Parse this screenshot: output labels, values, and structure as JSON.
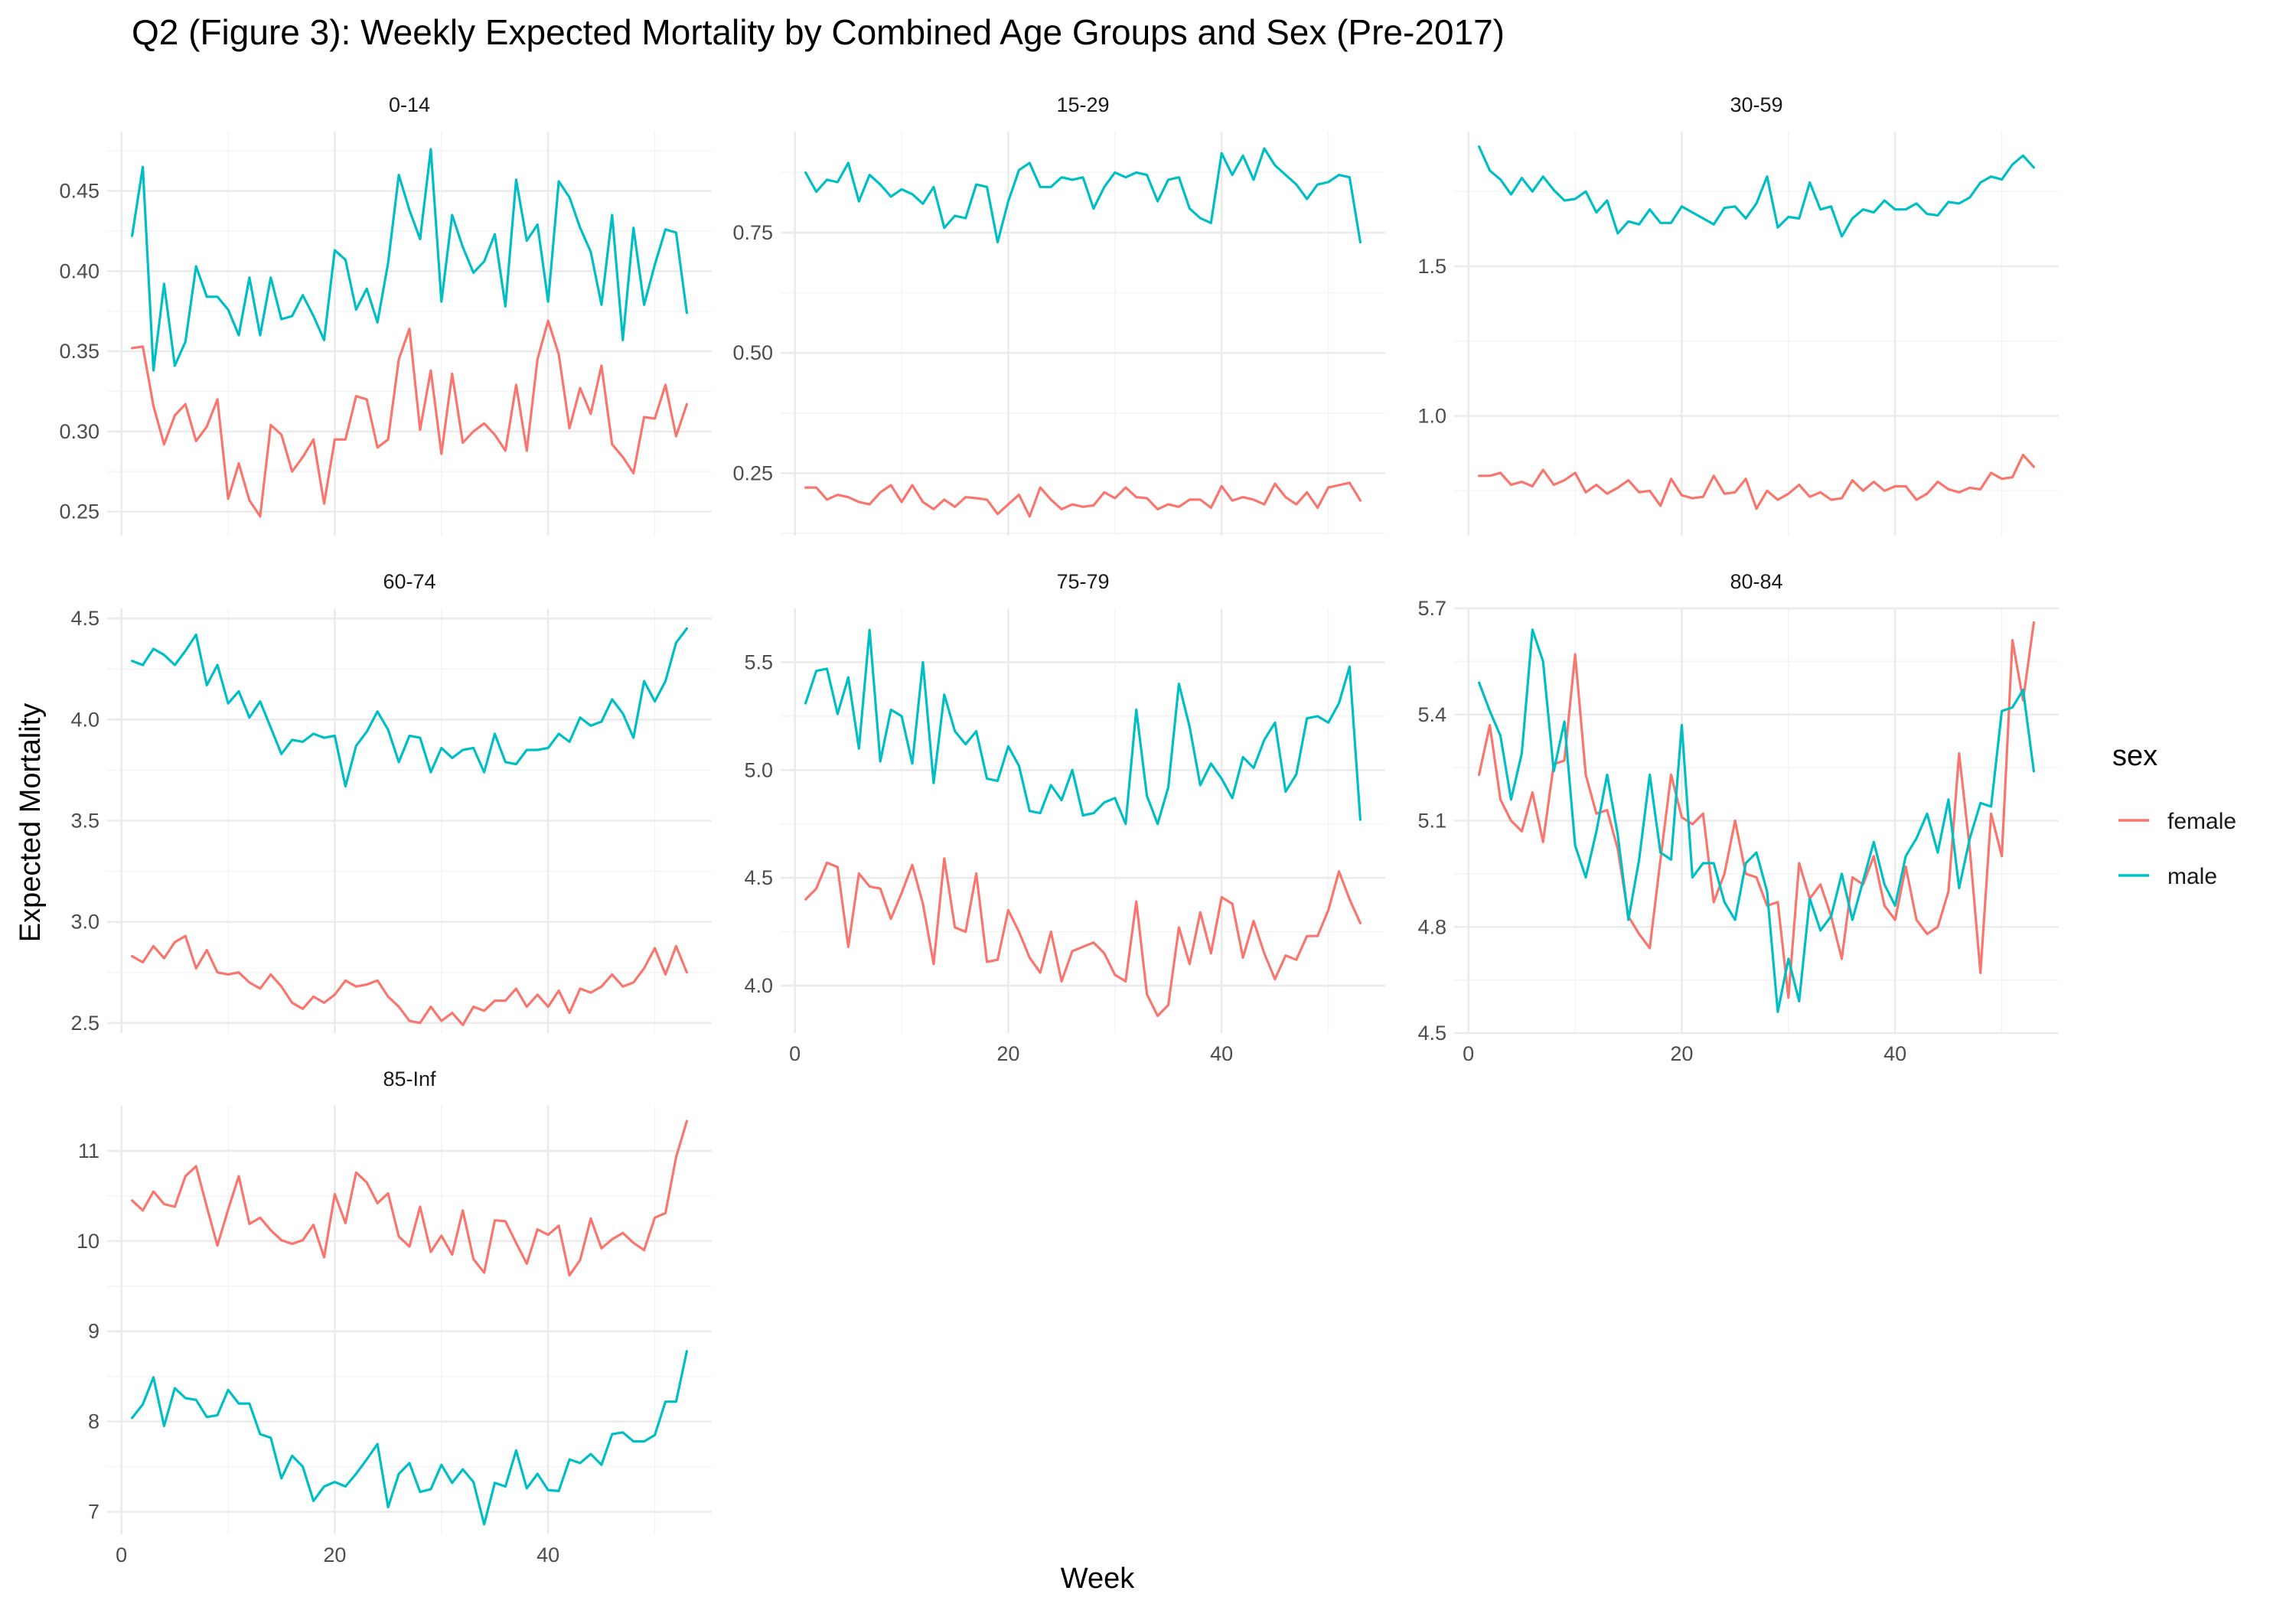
{
  "chart_data": {
    "type": "line",
    "title": "Q2 (Figure 3): Weekly Expected Mortality by Combined Age Groups and Sex (Pre-2017)",
    "xlabel": "Week",
    "ylabel": "Expected Mortality",
    "x_ticks": [
      0,
      20,
      40
    ],
    "xlim": [
      1,
      53
    ],
    "legend": {
      "title": "sex",
      "position": "right",
      "entries": [
        {
          "name": "female",
          "color": "#F8766D"
        },
        {
          "name": "male",
          "color": "#00BFC4"
        }
      ]
    },
    "grid": true,
    "panels": [
      {
        "label": "0-14",
        "ylim": [
          0.235,
          0.487
        ],
        "y_ticks": [
          0.25,
          0.3,
          0.35,
          0.4,
          0.45
        ],
        "y_tick_labels": [
          "0.25",
          "0.30",
          "0.35",
          "0.40",
          "0.45"
        ],
        "series": [
          {
            "name": "female",
            "values": [
              0.352,
              0.353,
              0.316,
              0.292,
              0.31,
              0.317,
              0.294,
              0.303,
              0.32,
              0.258,
              0.28,
              0.257,
              0.247,
              0.304,
              0.298,
              0.275,
              0.284,
              0.295,
              0.255,
              0.295,
              0.295,
              0.322,
              0.32,
              0.29,
              0.295,
              0.345,
              0.364,
              0.301,
              0.338,
              0.286,
              0.336,
              0.293,
              0.3,
              0.305,
              0.298,
              0.288,
              0.329,
              0.288,
              0.345,
              0.369,
              0.348,
              0.302,
              0.327,
              0.311,
              0.341,
              0.292,
              0.284,
              0.274,
              0.309,
              0.308,
              0.329,
              0.297,
              0.317
            ]
          },
          {
            "name": "male",
            "values": [
              0.422,
              0.465,
              0.338,
              0.392,
              0.341,
              0.356,
              0.403,
              0.384,
              0.384,
              0.376,
              0.36,
              0.396,
              0.36,
              0.396,
              0.37,
              0.372,
              0.385,
              0.372,
              0.357,
              0.413,
              0.407,
              0.376,
              0.389,
              0.368,
              0.405,
              0.46,
              0.438,
              0.42,
              0.476,
              0.381,
              0.435,
              0.415,
              0.399,
              0.406,
              0.423,
              0.378,
              0.457,
              0.419,
              0.429,
              0.381,
              0.456,
              0.446,
              0.427,
              0.412,
              0.379,
              0.435,
              0.357,
              0.427,
              0.379,
              0.404,
              0.426,
              0.424,
              0.374
            ]
          }
        ]
      },
      {
        "label": "15-29",
        "ylim": [
          0.12,
          0.96
        ],
        "y_ticks": [
          0.25,
          0.5,
          0.75
        ],
        "y_tick_labels": [
          "0.25",
          "0.50",
          "0.75"
        ],
        "series": [
          {
            "name": "female",
            "values": [
              0.22,
              0.22,
              0.195,
              0.205,
              0.2,
              0.19,
              0.185,
              0.21,
              0.225,
              0.19,
              0.225,
              0.19,
              0.175,
              0.195,
              0.18,
              0.2,
              0.198,
              0.195,
              0.165,
              0.185,
              0.205,
              0.16,
              0.22,
              0.195,
              0.175,
              0.185,
              0.18,
              0.183,
              0.21,
              0.198,
              0.22,
              0.2,
              0.198,
              0.175,
              0.185,
              0.18,
              0.195,
              0.195,
              0.178,
              0.223,
              0.193,
              0.2,
              0.195,
              0.185,
              0.228,
              0.2,
              0.185,
              0.21,
              0.178,
              0.22,
              0.225,
              0.23,
              0.193
            ]
          },
          {
            "name": "male",
            "values": [
              0.875,
              0.835,
              0.86,
              0.855,
              0.895,
              0.815,
              0.87,
              0.85,
              0.825,
              0.84,
              0.83,
              0.81,
              0.845,
              0.76,
              0.785,
              0.78,
              0.85,
              0.845,
              0.73,
              0.815,
              0.88,
              0.895,
              0.845,
              0.845,
              0.865,
              0.86,
              0.865,
              0.8,
              0.845,
              0.875,
              0.865,
              0.875,
              0.87,
              0.815,
              0.86,
              0.865,
              0.8,
              0.78,
              0.77,
              0.915,
              0.87,
              0.91,
              0.86,
              0.925,
              0.89,
              0.87,
              0.85,
              0.82,
              0.85,
              0.855,
              0.87,
              0.865,
              0.73
            ]
          }
        ]
      },
      {
        "label": "30-59",
        "ylim": [
          0.6,
          1.95
        ],
        "y_ticks": [
          1.0,
          1.5
        ],
        "y_tick_labels": [
          "1.0",
          "1.5"
        ],
        "series": [
          {
            "name": "female",
            "values": [
              0.8,
              0.8,
              0.81,
              0.77,
              0.78,
              0.765,
              0.82,
              0.77,
              0.785,
              0.81,
              0.745,
              0.77,
              0.74,
              0.76,
              0.785,
              0.745,
              0.75,
              0.7,
              0.79,
              0.735,
              0.725,
              0.73,
              0.8,
              0.74,
              0.745,
              0.79,
              0.69,
              0.75,
              0.72,
              0.74,
              0.77,
              0.73,
              0.745,
              0.72,
              0.725,
              0.785,
              0.75,
              0.78,
              0.75,
              0.765,
              0.765,
              0.72,
              0.74,
              0.78,
              0.755,
              0.745,
              0.76,
              0.755,
              0.81,
              0.79,
              0.795,
              0.87,
              0.83
            ]
          },
          {
            "name": "male",
            "values": [
              1.9,
              1.82,
              1.79,
              1.74,
              1.795,
              1.75,
              1.8,
              1.755,
              1.72,
              1.725,
              1.75,
              1.68,
              1.72,
              1.61,
              1.65,
              1.64,
              1.69,
              1.645,
              1.645,
              1.7,
              1.68,
              1.66,
              1.64,
              1.695,
              1.7,
              1.66,
              1.71,
              1.8,
              1.63,
              1.665,
              1.66,
              1.78,
              1.69,
              1.7,
              1.6,
              1.66,
              1.69,
              1.68,
              1.72,
              1.69,
              1.69,
              1.71,
              1.675,
              1.67,
              1.715,
              1.71,
              1.73,
              1.78,
              1.8,
              1.79,
              1.84,
              1.87,
              1.83
            ]
          }
        ]
      },
      {
        "label": "60-74",
        "ylim": [
          2.45,
          4.55
        ],
        "y_ticks": [
          2.5,
          3.0,
          3.5,
          4.0,
          4.5
        ],
        "y_tick_labels": [
          "2.5",
          "3.0",
          "3.5",
          "4.0",
          "4.5"
        ],
        "series": [
          {
            "name": "female",
            "values": [
              2.83,
              2.8,
              2.88,
              2.82,
              2.9,
              2.93,
              2.77,
              2.86,
              2.75,
              2.74,
              2.75,
              2.7,
              2.67,
              2.74,
              2.68,
              2.6,
              2.57,
              2.63,
              2.6,
              2.64,
              2.71,
              2.68,
              2.69,
              2.71,
              2.63,
              2.58,
              2.51,
              2.5,
              2.58,
              2.51,
              2.55,
              2.49,
              2.58,
              2.56,
              2.61,
              2.61,
              2.67,
              2.58,
              2.64,
              2.58,
              2.66,
              2.55,
              2.67,
              2.65,
              2.68,
              2.74,
              2.68,
              2.7,
              2.77,
              2.87,
              2.74,
              2.88,
              2.75
            ]
          },
          {
            "name": "male",
            "values": [
              4.29,
              4.27,
              4.35,
              4.32,
              4.27,
              4.34,
              4.42,
              4.17,
              4.27,
              4.08,
              4.14,
              4.01,
              4.09,
              3.96,
              3.83,
              3.9,
              3.89,
              3.93,
              3.91,
              3.92,
              3.67,
              3.87,
              3.94,
              4.04,
              3.95,
              3.79,
              3.92,
              3.91,
              3.74,
              3.86,
              3.81,
              3.85,
              3.86,
              3.74,
              3.93,
              3.79,
              3.78,
              3.85,
              3.85,
              3.86,
              3.93,
              3.89,
              4.01,
              3.97,
              3.99,
              4.1,
              4.03,
              3.91,
              4.19,
              4.09,
              4.19,
              4.38,
              4.45
            ]
          }
        ]
      },
      {
        "label": "75-79",
        "ylim": [
          3.78,
          5.75
        ],
        "y_ticks": [
          4.0,
          4.5,
          5.0,
          5.5
        ],
        "y_tick_labels": [
          "4.0",
          "4.5",
          "5.0",
          "5.5"
        ],
        "series": [
          {
            "name": "female",
            "values": [
              4.4,
              4.45,
              4.57,
              4.55,
              4.18,
              4.52,
              4.46,
              4.45,
              4.31,
              4.43,
              4.56,
              4.38,
              4.1,
              4.59,
              4.27,
              4.25,
              4.52,
              4.11,
              4.12,
              4.35,
              4.25,
              4.13,
              4.06,
              4.25,
              4.02,
              4.16,
              4.18,
              4.2,
              4.15,
              4.05,
              4.02,
              4.39,
              3.96,
              3.86,
              3.91,
              4.27,
              4.1,
              4.34,
              4.15,
              4.41,
              4.38,
              4.13,
              4.3,
              4.15,
              4.03,
              4.14,
              4.12,
              4.23,
              4.23,
              4.35,
              4.53,
              4.4,
              4.29
            ]
          },
          {
            "name": "male",
            "values": [
              5.31,
              5.46,
              5.47,
              5.26,
              5.43,
              5.1,
              5.65,
              5.04,
              5.28,
              5.25,
              5.03,
              5.5,
              4.94,
              5.35,
              5.18,
              5.12,
              5.18,
              4.96,
              4.95,
              5.11,
              5.02,
              4.81,
              4.8,
              4.93,
              4.86,
              5.0,
              4.79,
              4.8,
              4.85,
              4.87,
              4.75,
              5.28,
              4.88,
              4.75,
              4.92,
              5.4,
              5.2,
              4.93,
              5.03,
              4.96,
              4.87,
              5.06,
              5.01,
              5.14,
              5.22,
              4.9,
              4.98,
              5.24,
              5.25,
              5.22,
              5.31,
              5.48,
              4.77
            ]
          }
        ]
      },
      {
        "label": "80-84",
        "ylim": [
          4.5,
          5.7
        ],
        "y_ticks": [
          4.5,
          4.8,
          5.1,
          5.4,
          5.7
        ],
        "y_tick_labels": [
          "4.5",
          "4.8",
          "5.1",
          "5.4",
          "5.7"
        ],
        "series": [
          {
            "name": "female",
            "values": [
              5.23,
              5.37,
              5.16,
              5.1,
              5.07,
              5.18,
              5.04,
              5.26,
              5.27,
              5.57,
              5.23,
              5.12,
              5.13,
              5.02,
              4.83,
              4.78,
              4.74,
              4.99,
              5.23,
              5.11,
              5.09,
              5.12,
              4.87,
              4.95,
              5.1,
              4.95,
              4.94,
              4.86,
              4.87,
              4.6,
              4.98,
              4.88,
              4.92,
              4.83,
              4.71,
              4.94,
              4.92,
              5.0,
              4.86,
              4.82,
              4.97,
              4.82,
              4.78,
              4.8,
              4.9,
              5.29,
              5.02,
              4.67,
              5.12,
              5.0,
              5.61,
              5.44,
              5.66
            ]
          },
          {
            "name": "male",
            "values": [
              5.49,
              5.41,
              5.34,
              5.16,
              5.29,
              5.64,
              5.55,
              5.24,
              5.38,
              5.03,
              4.94,
              5.07,
              5.23,
              5.06,
              4.82,
              4.99,
              5.23,
              5.01,
              4.99,
              5.37,
              4.94,
              4.98,
              4.98,
              4.87,
              4.82,
              4.98,
              5.01,
              4.9,
              4.56,
              4.71,
              4.59,
              4.88,
              4.79,
              4.83,
              4.95,
              4.82,
              4.93,
              5.04,
              4.92,
              4.86,
              5.0,
              5.05,
              5.12,
              5.01,
              5.16,
              4.91,
              5.05,
              5.15,
              5.14,
              5.41,
              5.42,
              5.47,
              5.24
            ]
          }
        ]
      },
      {
        "label": "85-Inf",
        "ylim": [
          6.75,
          11.5
        ],
        "y_ticks": [
          7,
          8,
          9,
          10,
          11
        ],
        "y_tick_labels": [
          "7",
          "8",
          "9",
          "10",
          "11"
        ],
        "series": [
          {
            "name": "female",
            "values": [
              10.45,
              10.34,
              10.55,
              10.41,
              10.38,
              10.72,
              10.83,
              10.38,
              9.95,
              10.35,
              10.72,
              10.19,
              10.26,
              10.12,
              10.01,
              9.97,
              10.01,
              10.18,
              9.82,
              10.52,
              10.2,
              10.76,
              10.65,
              10.42,
              10.53,
              10.05,
              9.94,
              10.38,
              9.88,
              10.06,
              9.85,
              10.34,
              9.8,
              9.65,
              10.23,
              10.22,
              9.98,
              9.75,
              10.13,
              10.07,
              10.17,
              9.62,
              9.79,
              10.25,
              9.92,
              10.02,
              10.09,
              9.98,
              9.9,
              10.26,
              10.31,
              10.93,
              11.33
            ]
          },
          {
            "name": "male",
            "values": [
              8.04,
              8.19,
              8.49,
              7.95,
              8.37,
              8.26,
              8.24,
              8.05,
              8.07,
              8.35,
              8.2,
              8.2,
              7.86,
              7.82,
              7.37,
              7.62,
              7.5,
              7.12,
              7.28,
              7.33,
              7.28,
              7.42,
              7.58,
              7.75,
              7.05,
              7.42,
              7.54,
              7.22,
              7.25,
              7.52,
              7.32,
              7.47,
              7.33,
              6.86,
              7.32,
              7.28,
              7.68,
              7.26,
              7.42,
              7.24,
              7.23,
              7.58,
              7.54,
              7.64,
              7.52,
              7.86,
              7.88,
              7.78,
              7.78,
              7.85,
              8.22,
              8.22,
              8.78
            ]
          }
        ]
      }
    ]
  }
}
